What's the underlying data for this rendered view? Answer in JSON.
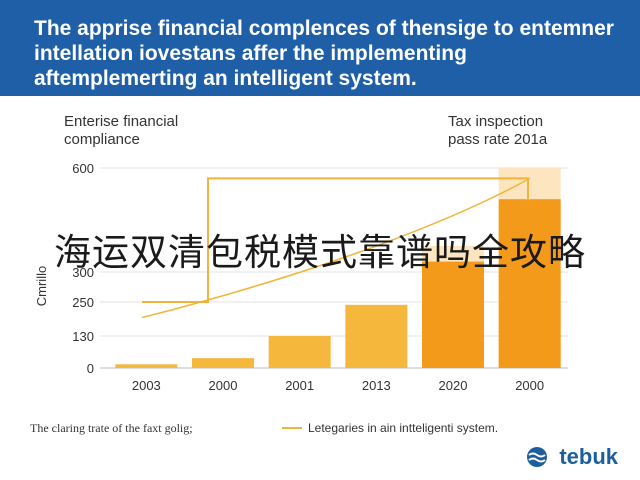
{
  "banner": {
    "title": "The apprise financial complences of thensige to entemner intellation iovestans affer the implementing aftemplemerting an intelligent system."
  },
  "overlay_text": "海运双清包税模式靠谱吗全攻略",
  "logo": {
    "text": "tebuk",
    "icon": "wave-logo-icon"
  },
  "chart_data": {
    "type": "bar",
    "left_title": "Enterise financial\ncompliance",
    "right_title": "Tax inspection\npass rate 201a",
    "ylabel": "Cmrillo",
    "yticks": [
      {
        "label": "0",
        "value": 0
      },
      {
        "label": "130",
        "value": 130
      },
      {
        "label": "250",
        "value": 250
      },
      {
        "label": "300",
        "value": 300
      },
      {
        "label": "600",
        "value": 600
      }
    ],
    "categories": [
      "2003",
      "2000",
      "2001",
      "2013",
      "2020",
      "2000"
    ],
    "values": [
      15,
      40,
      130,
      240,
      330,
      510
    ],
    "highlight_values": [
      null,
      null,
      null,
      null,
      375,
      600
    ],
    "step_line": {
      "name": "Letegaries in ain intteligenti system.",
      "y": [
        250,
        570
      ]
    },
    "curve_line": {
      "y_start": 195,
      "y_end": 570
    },
    "legend": {
      "left_label": "The claring trate of the faxt golig;",
      "right_label": "Letegaries in ain intteligenti system.",
      "placement": "bottom"
    },
    "colors": {
      "bar": "#f5b73c",
      "bar_strong": "#f49a1a",
      "highlight": "#fde6bf",
      "line": "#f0b43a",
      "axis": "#bbbbbb",
      "text": "#333333"
    }
  }
}
